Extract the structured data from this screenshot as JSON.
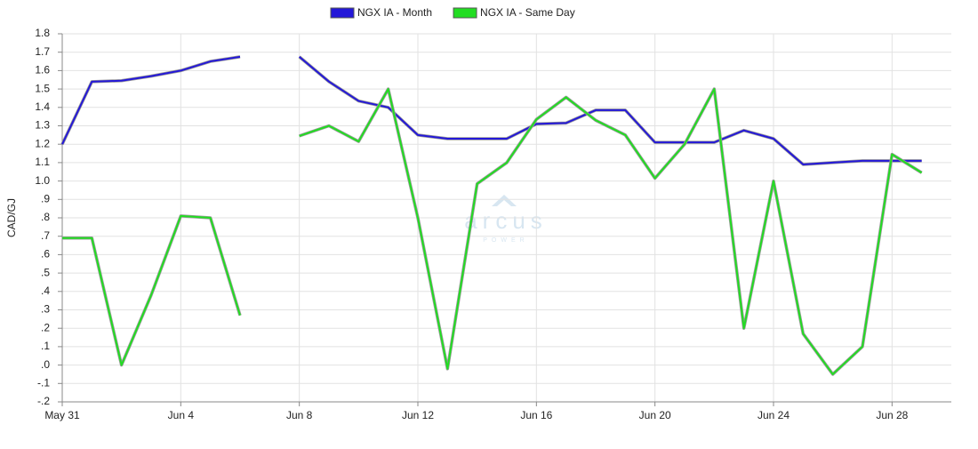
{
  "chart_data": {
    "type": "line",
    "y_label": "CAD/GJ",
    "watermark": {
      "brand": "arcus",
      "sub": "POWER"
    },
    "categories": [
      "May 31",
      null,
      null,
      null,
      "Jun 4",
      null,
      null,
      null,
      "Jun 8",
      null,
      null,
      null,
      "Jun 12",
      null,
      null,
      null,
      "Jun 16",
      null,
      null,
      null,
      "Jun 20",
      null,
      null,
      null,
      "Jun 24",
      null,
      null,
      null,
      "Jun 28",
      null
    ],
    "series": [
      {
        "name": "NGX IA - Month",
        "color": "#2418d8",
        "values": [
          1.2,
          1.54,
          1.545,
          1.57,
          1.6,
          1.65,
          1.675,
          null,
          1.675,
          1.54,
          1.435,
          1.4,
          1.25,
          1.23,
          1.23,
          1.23,
          1.31,
          1.315,
          1.385,
          1.385,
          1.21,
          1.21,
          1.21,
          1.275,
          1.23,
          1.09,
          1.1,
          1.11,
          1.11,
          1.11
        ]
      },
      {
        "name": "NGX IA - Same Day",
        "color": "#22dd22",
        "values": [
          0.69,
          0.69,
          0.0,
          0.38,
          0.81,
          0.8,
          0.27,
          null,
          1.245,
          1.3,
          1.215,
          1.5,
          0.8,
          -0.02,
          0.985,
          1.1,
          1.335,
          1.455,
          1.33,
          1.25,
          1.015,
          1.2,
          1.5,
          0.2,
          1.0,
          0.17,
          -0.05,
          0.1,
          1.145,
          1.045
        ]
      }
    ],
    "ylim": [
      -0.2,
      1.8
    ],
    "yticks": [
      1.8,
      1.7,
      1.6,
      1.5,
      1.4,
      1.3,
      1.2,
      1.1,
      {
        "value": 1.0,
        "label": "1.0"
      },
      {
        "value": 0.9,
        "label": ".9"
      },
      {
        "value": 0.8,
        "label": ".8"
      },
      {
        "value": 0.7,
        "label": ".7"
      },
      {
        "value": 0.6,
        "label": ".6"
      },
      {
        "value": 0.5,
        "label": ".5"
      },
      {
        "value": 0.4,
        "label": ".4"
      },
      {
        "value": 0.3,
        "label": ".3"
      },
      {
        "value": 0.2,
        "label": ".2"
      },
      {
        "value": 0.1,
        "label": ".1"
      },
      {
        "value": 0,
        "label": ".0"
      },
      {
        "value": -0.1,
        "label": "-.1"
      },
      {
        "value": -0.2,
        "label": "-.2"
      }
    ],
    "grid": true,
    "legend": "top"
  }
}
